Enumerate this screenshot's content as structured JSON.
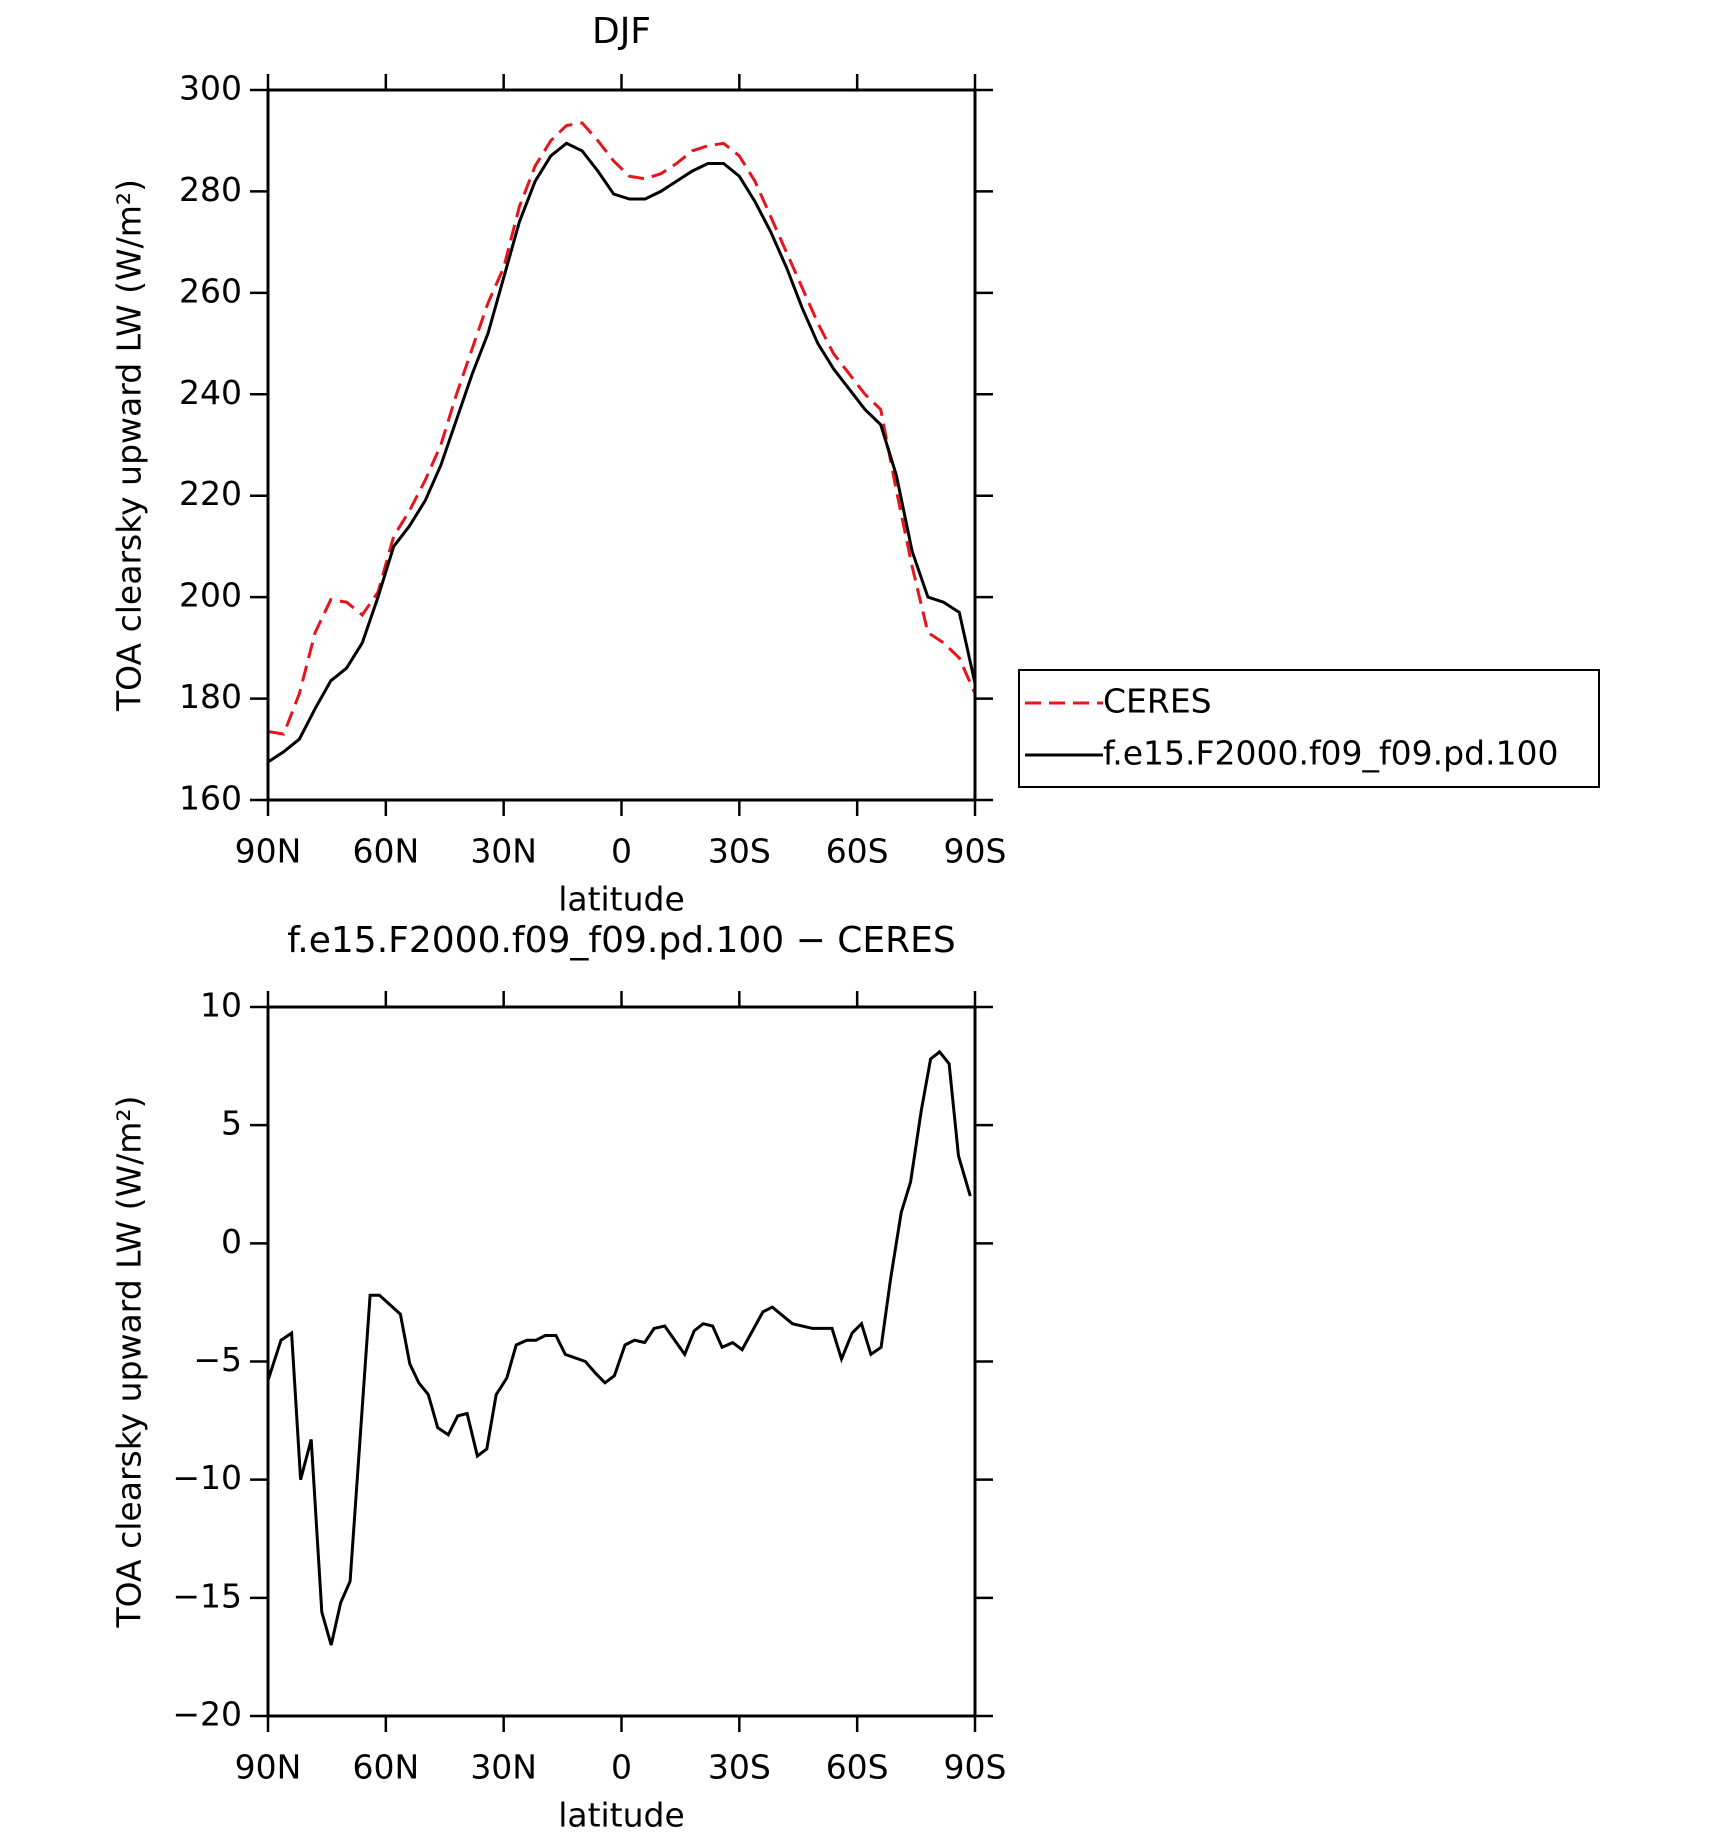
{
  "chart_data": [
    {
      "type": "line",
      "title": "DJF",
      "x_label": "latitude",
      "y_label": "TOA clearsky upward LW (W/m²)",
      "xlim": [
        90,
        -90
      ],
      "xticks": [
        {
          "value": 90,
          "label": "90N"
        },
        {
          "value": 60,
          "label": "60N"
        },
        {
          "value": 30,
          "label": "30N"
        },
        0,
        {
          "value": -30,
          "label": "30S"
        },
        {
          "value": -60,
          "label": "60S"
        },
        {
          "value": -90,
          "label": "90S"
        }
      ],
      "ylim": [
        160,
        300
      ],
      "yticks": [
        160,
        180,
        200,
        220,
        240,
        260,
        280,
        300
      ],
      "x": [
        90,
        86,
        82,
        78,
        74,
        70,
        66,
        62,
        58,
        54,
        50,
        46,
        42,
        38,
        34,
        30,
        26,
        22,
        18,
        14,
        10,
        6,
        2,
        -2,
        -6,
        -10,
        -14,
        -18,
        -22,
        -26,
        -30,
        -34,
        -38,
        -42,
        -46,
        -50,
        -54,
        -58,
        -62,
        -66,
        -70,
        -74,
        -78,
        -82,
        -86,
        -90
      ],
      "legend": "right",
      "series": [
        {
          "name": "CERES",
          "color": "#e8141c",
          "dashed": true,
          "values": [
            173.5,
            173,
            181,
            193,
            199.5,
            199,
            196.5,
            201,
            212,
            217,
            223,
            230,
            240,
            249,
            258,
            265,
            277,
            285,
            290,
            293,
            293.5,
            290,
            286,
            283,
            282.5,
            283.5,
            285.5,
            288,
            289,
            289.5,
            287,
            282,
            275,
            268,
            261,
            254,
            248,
            244,
            240,
            237,
            221,
            206,
            193,
            191,
            188,
            181
          ]
        },
        {
          "name": "f.e15.F2000.f09_f09.pd.100",
          "color": "#000000",
          "dashed": false,
          "values": [
            167.5,
            169.5,
            172,
            178,
            183.5,
            186,
            191,
            200,
            210,
            214,
            219,
            226,
            235,
            244,
            252,
            263,
            274,
            282,
            287,
            289.5,
            288,
            284,
            279.5,
            278.5,
            278.5,
            280,
            282,
            284,
            285.5,
            285.5,
            283,
            278,
            272,
            265,
            257,
            250,
            245,
            241,
            237,
            234,
            224,
            209,
            200,
            199,
            197,
            183
          ]
        }
      ]
    },
    {
      "type": "line",
      "title": "f.e15.F2000.f09_f09.pd.100 − CERES",
      "x_label": "latitude",
      "y_label": "TOA clearsky upward LW (W/m²)",
      "xlim": [
        90,
        -90
      ],
      "xticks": [
        {
          "value": 90,
          "label": "90N"
        },
        {
          "value": 60,
          "label": "60N"
        },
        {
          "value": 30,
          "label": "30N"
        },
        0,
        {
          "value": -30,
          "label": "30S"
        },
        {
          "value": -60,
          "label": "60S"
        },
        {
          "value": -90,
          "label": "90S"
        }
      ],
      "ylim": [
        -20,
        10
      ],
      "yticks": [
        {
          "value": -20,
          "label": "−20"
        },
        {
          "value": -15,
          "label": "−15"
        },
        {
          "value": -10,
          "label": "−10"
        },
        {
          "value": -5,
          "label": "−5"
        },
        0,
        5,
        10
      ],
      "x": [
        90,
        86.7,
        84,
        81.7,
        79,
        76.3,
        73.9,
        71.5,
        69.1,
        64,
        61.6,
        56.3,
        53.9,
        51.6,
        49.2,
        46.8,
        44.1,
        41.7,
        39.3,
        36.7,
        34.3,
        31.9,
        29.2,
        26.8,
        24.1,
        21.8,
        19.4,
        16.7,
        14.3,
        9.2,
        6.6,
        4.2,
        1.8,
        -0.9,
        -3.3,
        -5.9,
        -8.3,
        -11,
        -16.1,
        -18.5,
        -20.8,
        -23.2,
        -25.6,
        -28.3,
        -30.7,
        -36,
        -38.4,
        -43.5,
        -48.6,
        -53.6,
        -56,
        -58.7,
        -61.1,
        -63.5,
        -66.1,
        -68.5,
        -71.2,
        -73.6,
        -76.3,
        -78.7,
        -81,
        -83.4,
        -85.8,
        -88.8
      ],
      "series": [
        {
          "color": "#000000",
          "dashed": false,
          "values": [
            -5.8,
            -4.1,
            -3.8,
            -10,
            -8.3,
            -15.6,
            -17,
            -15.2,
            -14.3,
            -2.2,
            -2.2,
            -3,
            -5.1,
            -5.9,
            -6.4,
            -7.8,
            -8.1,
            -7.3,
            -7.2,
            -9,
            -8.7,
            -6.4,
            -5.7,
            -4.3,
            -4.1,
            -4.1,
            -3.9,
            -3.9,
            -4.7,
            -5,
            -5.5,
            -5.9,
            -5.6,
            -4.3,
            -4.1,
            -4.2,
            -3.6,
            -3.5,
            -4.7,
            -3.7,
            -3.4,
            -3.5,
            -4.4,
            -4.2,
            -4.5,
            -2.9,
            -2.7,
            -3.4,
            -3.6,
            -3.6,
            -4.9,
            -3.8,
            -3.4,
            -4.7,
            -4.4,
            -1.5,
            1.3,
            2.6,
            5.6,
            7.8,
            8.1,
            7.6,
            3.7,
            2
          ]
        }
      ]
    }
  ]
}
